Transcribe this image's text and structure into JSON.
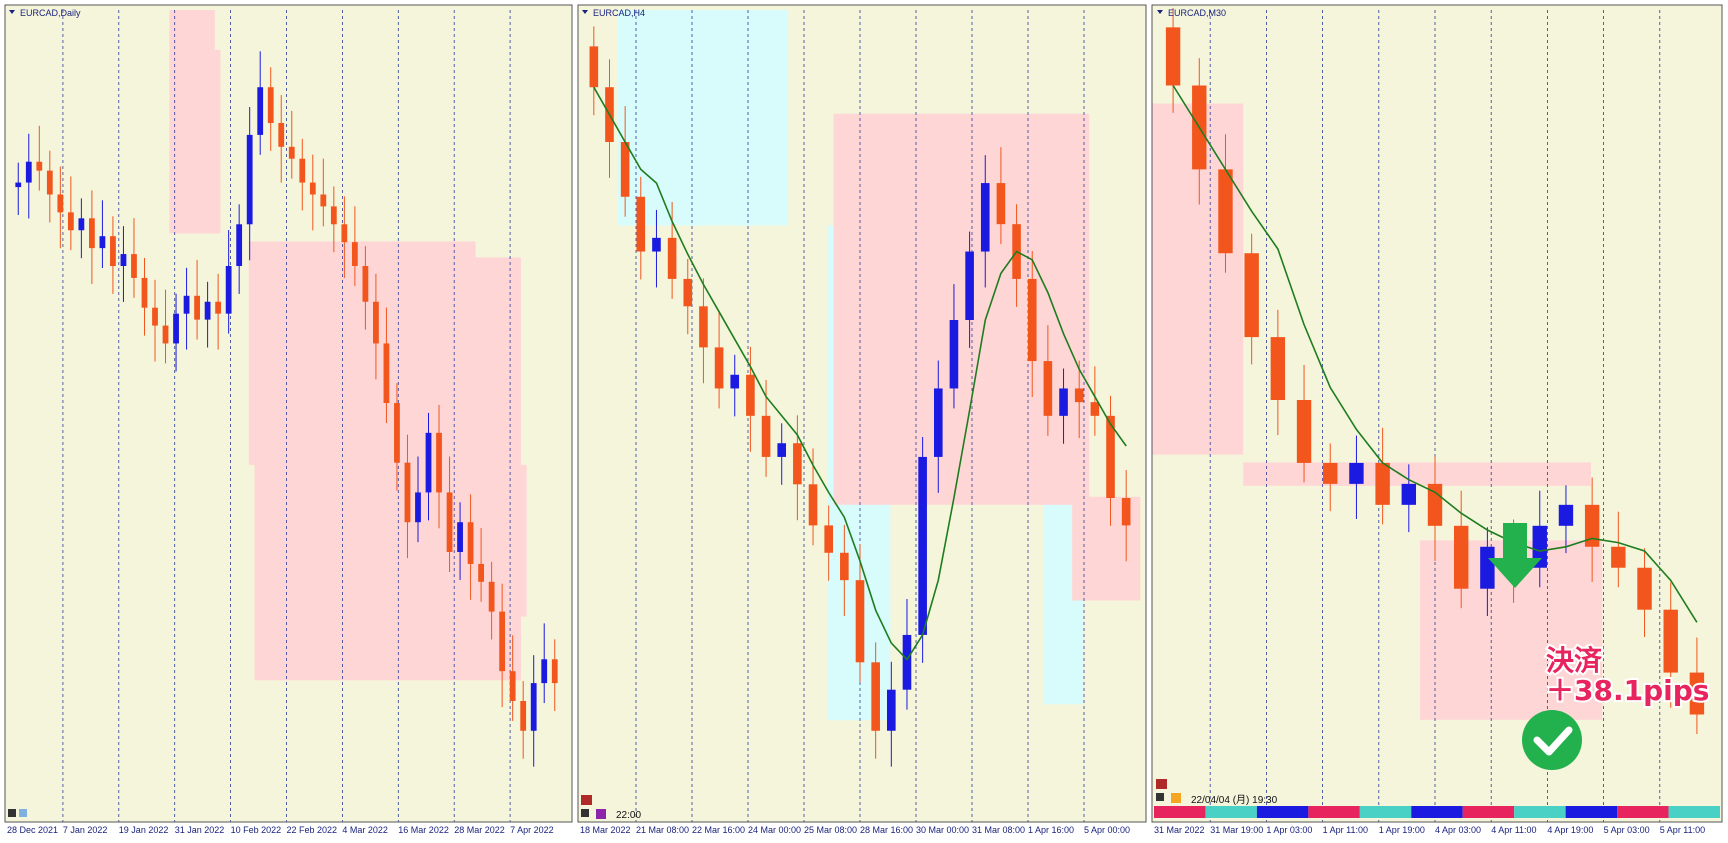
{
  "colors": {
    "background": "#f5f5dc",
    "bull_candle": "#1a1ae0",
    "bear_candle": "#f2561d",
    "moving_average": "#1e7d1e",
    "sell_zone": "#ffd6d6",
    "buy_zone": "#d8fbfb",
    "grid": "#2a3a9a",
    "annotation": "#e8245e",
    "check": "#22b14c"
  },
  "chart_data": [
    {
      "type": "candlestick",
      "title": "EURCAD,Daily",
      "x_ticks": [
        "28 Dec 2021",
        "7 Jan 2022",
        "19 Jan 2022",
        "31 Jan 2022",
        "10 Feb 2022",
        "22 Feb 2022",
        "4 Mar 2022",
        "16 Mar 2022",
        "28 Mar 2022",
        "7 Apr 2022"
      ],
      "grid": true,
      "series": [
        {
          "name": "",
          "values": [
            1.452,
            1.4555,
            1.454,
            1.45,
            1.447,
            1.444,
            1.446,
            1.441,
            1.443,
            1.438,
            1.44,
            1.436,
            1.431,
            1.428,
            1.425,
            1.43,
            1.433,
            1.429,
            1.432,
            1.43,
            1.438,
            1.445,
            1.46,
            1.468,
            1.462,
            1.458,
            1.456,
            1.452,
            1.45,
            1.448,
            1.445,
            1.442,
            1.438,
            1.432,
            1.425,
            1.415,
            1.405,
            1.395,
            1.4,
            1.41,
            1.4,
            1.39,
            1.395,
            1.388,
            1.385,
            1.38,
            1.37,
            1.365,
            1.36,
            1.368,
            1.372,
            1.368
          ]
        }
      ]
    },
    {
      "type": "candlestick",
      "title": "EURCAD,H4",
      "x_ticks": [
        "18 Mar 2022",
        "21 Mar 08:00",
        "22 Mar 16:00",
        "24 Mar 00:00",
        "25 Mar 08:00",
        "28 Mar 16:00",
        "30 Mar 00:00",
        "31 Mar 08:00",
        "1 Apr 16:00",
        "5 Apr 00:00"
      ],
      "status_time": "22:00",
      "grid": true,
      "series": [
        {
          "name": "",
          "values": [
            1.392,
            1.388,
            1.384,
            1.38,
            1.381,
            1.378,
            1.376,
            1.373,
            1.37,
            1.371,
            1.368,
            1.365,
            1.366,
            1.363,
            1.36,
            1.358,
            1.356,
            1.35,
            1.345,
            1.348,
            1.352,
            1.365,
            1.37,
            1.375,
            1.38,
            1.385,
            1.382,
            1.378,
            1.372,
            1.368,
            1.37,
            1.369,
            1.368,
            1.362,
            1.36
          ]
        }
      ]
    },
    {
      "type": "candlestick",
      "title": "EURCAD,M30",
      "x_ticks": [
        "31 Mar 2022",
        "31 Mar 19:00",
        "1 Apr 03:00",
        "1 Apr 11:00",
        "1 Apr 19:00",
        "4 Apr 03:00",
        "4 Apr 11:00",
        "4 Apr 19:00",
        "5 Apr 03:00",
        "5 Apr 11:00"
      ],
      "status_time": "22/04/04 (月) 19:30",
      "grid": true,
      "series": [
        {
          "name": "",
          "values": [
            1.384,
            1.38,
            1.376,
            1.372,
            1.369,
            1.366,
            1.365,
            1.366,
            1.364,
            1.365,
            1.363,
            1.36,
            1.362,
            1.361,
            1.363,
            1.364,
            1.362,
            1.361,
            1.359,
            1.356,
            1.354
          ]
        }
      ]
    }
  ],
  "annotation": {
    "line1": "決済",
    "line2": "＋38.1pips"
  },
  "icons": [
    "down-arrow-icon",
    "check-icon"
  ]
}
